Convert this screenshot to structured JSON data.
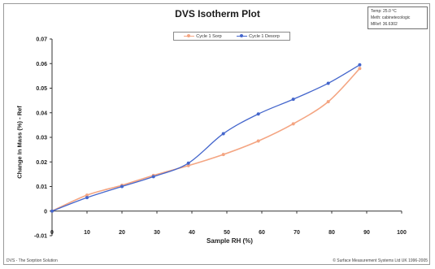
{
  "chart_title": "DVS Isotherm Plot",
  "info_box": {
    "lines": [
      "Temp: 25.0 °C",
      "Meth: cabinetecologic",
      "MRef: 36.6302"
    ]
  },
  "footer_left": "DVS - The Sorption Solution",
  "footer_right": "© Surface Measurement Systems Ltd UK 1996-2005",
  "colors": {
    "sorp": "#f4a582",
    "desorp": "#4466cc",
    "axis": "#333333",
    "frame": "#9a9a9a"
  },
  "chart_data": {
    "type": "line",
    "title": "DVS Isotherm Plot",
    "xlabel": "Sample RH (%)",
    "ylabel": "Change In Mass (%) - Ref",
    "xlim": [
      0,
      100
    ],
    "ylim": [
      -0.01,
      0.07
    ],
    "x_ticks": [
      0,
      10,
      20,
      30,
      40,
      50,
      60,
      70,
      80,
      90,
      100
    ],
    "y_ticks": [
      -0.01,
      0,
      0.01,
      0.02,
      0.03,
      0.04,
      0.05,
      0.06,
      0.07
    ],
    "y_tick_labels": [
      "-0.01",
      "0",
      "0.01",
      "0.02",
      "0.03",
      "0.04",
      "0.05",
      "0.06",
      "0.07"
    ],
    "grid": false,
    "legend_position": "top-center",
    "series": [
      {
        "name": "Cycle 1 Sorp",
        "color": "#f4a582",
        "x": [
          0,
          10,
          20,
          29,
          39,
          49,
          59,
          69,
          79,
          88
        ],
        "y": [
          0.0,
          0.0065,
          0.0105,
          0.0145,
          0.0185,
          0.023,
          0.0285,
          0.0355,
          0.0445,
          0.058
        ]
      },
      {
        "name": "Cycle 1 Desorp",
        "color": "#4466cc",
        "x": [
          0,
          10,
          20,
          29,
          39,
          49,
          59,
          69,
          79,
          88
        ],
        "y": [
          0.0,
          0.0055,
          0.01,
          0.014,
          0.0195,
          0.0315,
          0.0395,
          0.0455,
          0.052,
          0.0595
        ]
      }
    ]
  }
}
